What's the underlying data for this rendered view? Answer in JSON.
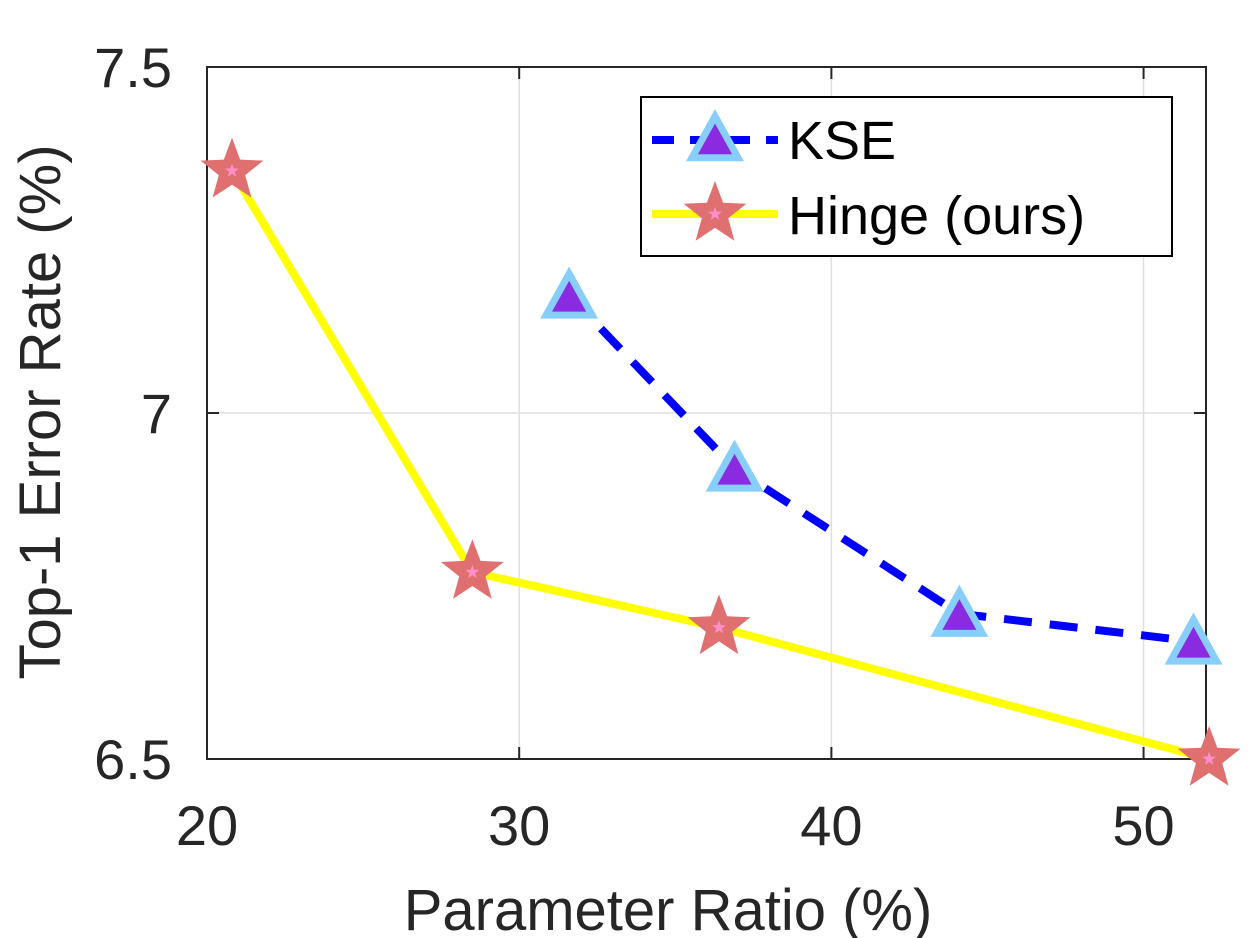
{
  "chart_data": {
    "type": "line",
    "title": "",
    "xlabel": "Parameter Ratio (%)",
    "ylabel": "Top-1 Error Rate (%)",
    "xlim": [
      20,
      52
    ],
    "ylim": [
      6.5,
      7.5
    ],
    "xticks": [
      "20",
      "30",
      "40",
      "50"
    ],
    "yticks": [
      "6.5",
      "7",
      "7.5"
    ],
    "grid": true,
    "legend_position": "top-right",
    "series": [
      {
        "name": "KSE",
        "line_style": "dashed",
        "line_color": "#0000ff",
        "marker": "triangle",
        "marker_fill": "#8a2be2",
        "marker_edge": "#87cefa",
        "x": [
          31.6,
          36.9,
          44.1,
          51.6
        ],
        "y": [
          7.17,
          6.92,
          6.71,
          6.67
        ]
      },
      {
        "name": "Hinge (ours)",
        "line_style": "solid",
        "line_color": "#ffff00",
        "marker": "star",
        "marker_fill": "#e07070",
        "marker_center": "#ff8fc8",
        "x": [
          20.8,
          28.5,
          36.4,
          52.1
        ],
        "y": [
          7.35,
          6.77,
          6.69,
          6.5
        ]
      }
    ]
  }
}
